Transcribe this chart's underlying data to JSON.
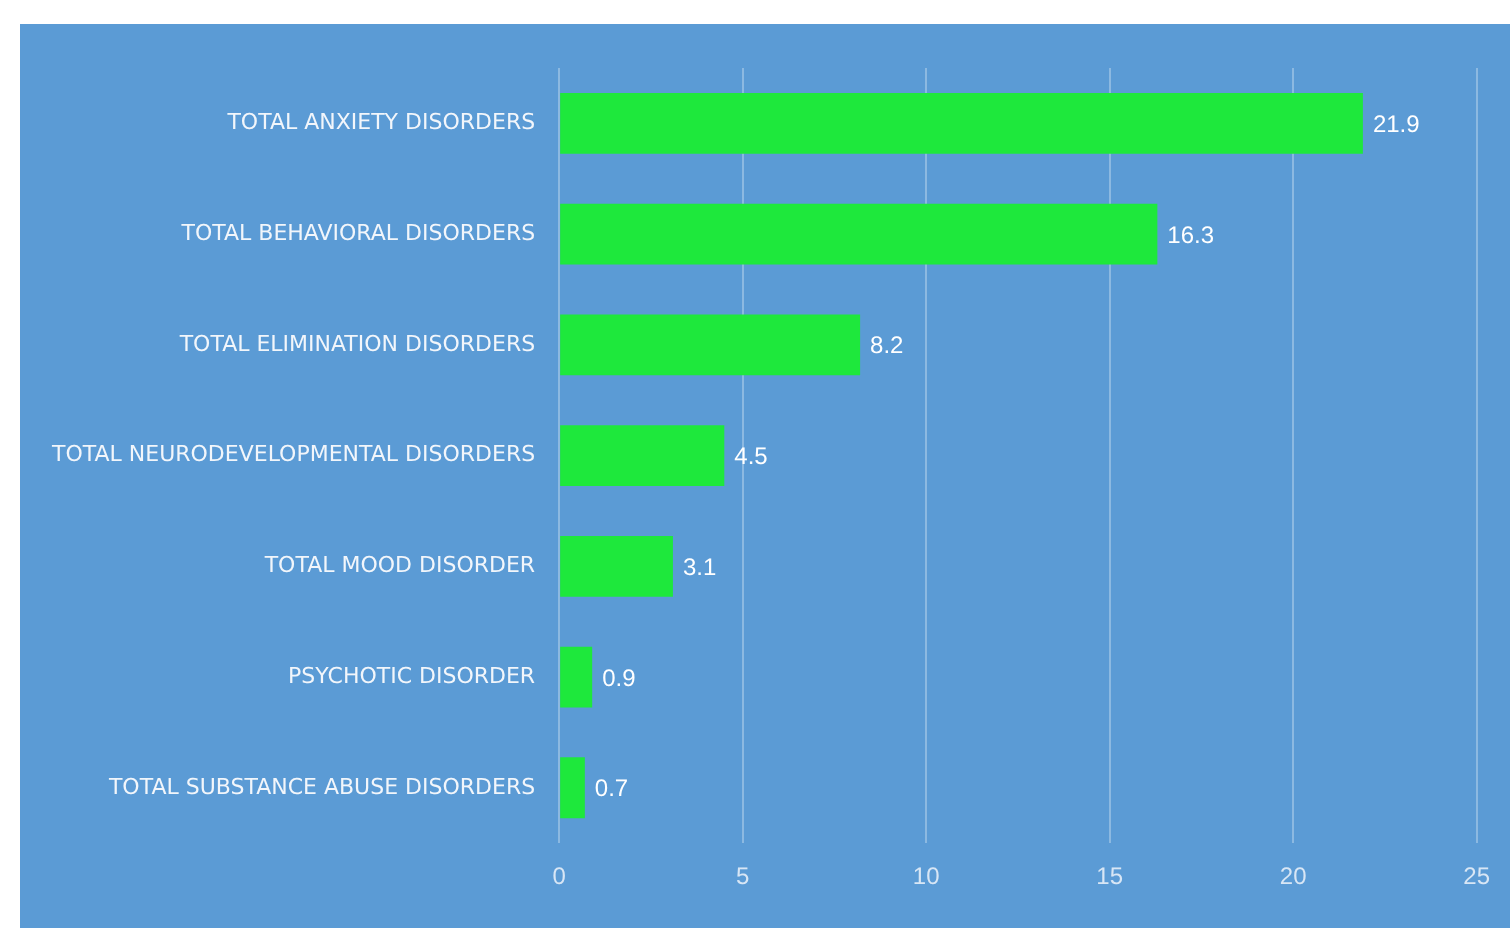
{
  "chart_data": {
    "type": "bar",
    "orientation": "horizontal",
    "categories": [
      "TOTAL ANXIETY DISORDERS",
      "TOTAL BEHAVIORAL DISORDERS",
      "TOTAL ELIMINATION DISORDERS",
      "TOTAL NEURODEVELOPMENTAL DISORDERS",
      "TOTAL MOOD DISORDER",
      "PSYCHOTIC DISORDER",
      "TOTAL SUBSTANCE ABUSE DISORDERS"
    ],
    "values": [
      21.9,
      16.3,
      8.2,
      4.5,
      3.1,
      0.9,
      0.7
    ],
    "color": "#1ee83c",
    "xlim": [
      0,
      25
    ],
    "xticks": [
      0,
      5,
      10,
      15,
      20,
      25
    ],
    "grid": "x",
    "legend": false,
    "data_labels": true
  }
}
